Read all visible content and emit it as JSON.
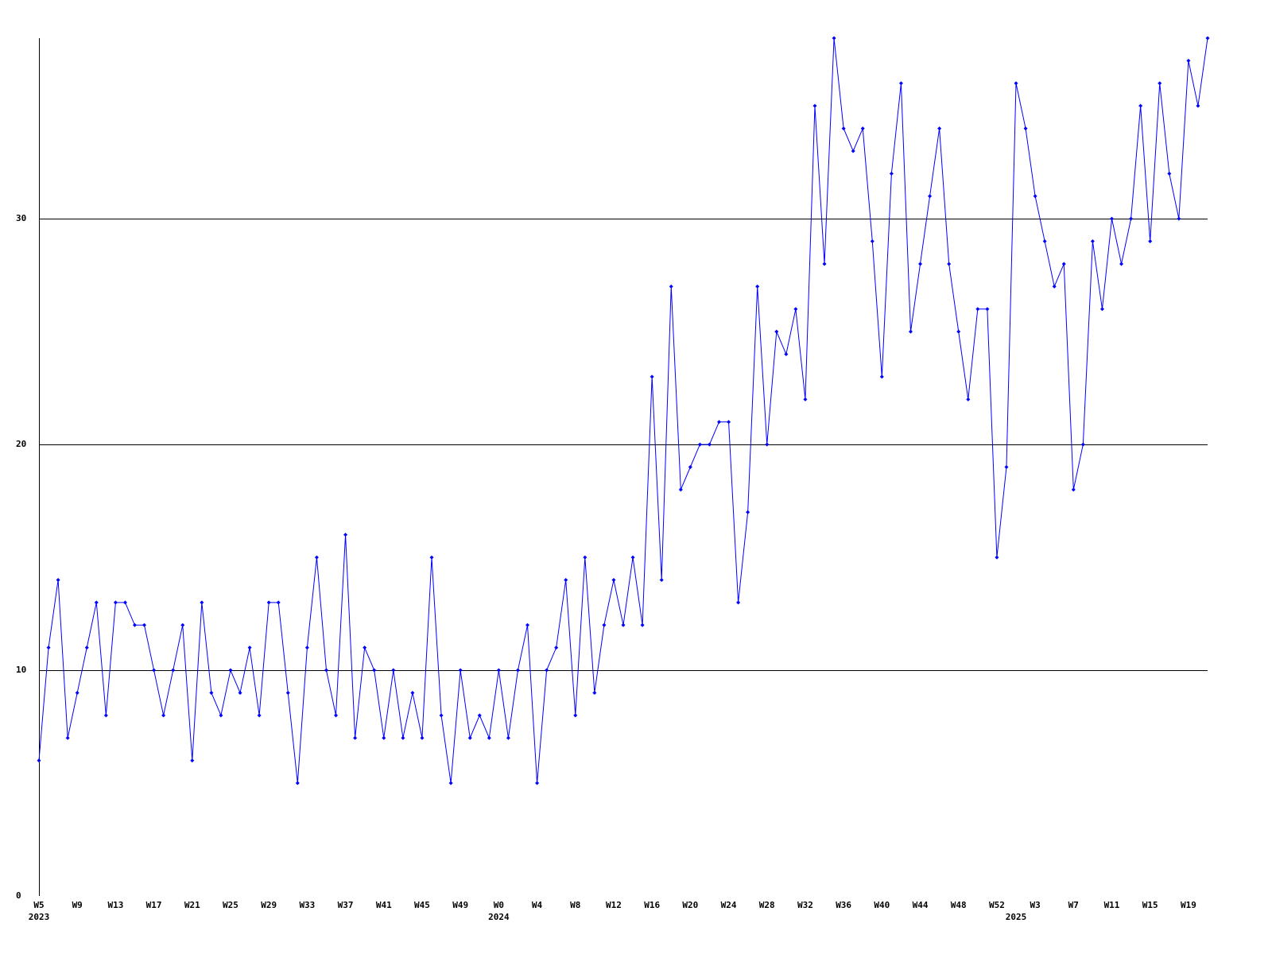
{
  "chart_data": {
    "type": "line",
    "categories": [
      "W5",
      null,
      null,
      null,
      "W9",
      null,
      null,
      null,
      "W13",
      null,
      null,
      null,
      "W17",
      null,
      null,
      null,
      "W21",
      null,
      null,
      null,
      "W25",
      null,
      null,
      null,
      "W29",
      null,
      null,
      null,
      "W33",
      null,
      null,
      null,
      "W37",
      null,
      null,
      null,
      "W41",
      null,
      null,
      null,
      "W45",
      null,
      null,
      null,
      "W49",
      null,
      null,
      null,
      "W0",
      null,
      null,
      null,
      "W4",
      null,
      null,
      null,
      "W8",
      null,
      null,
      null,
      "W12",
      null,
      null,
      null,
      "W16",
      null,
      null,
      null,
      "W20",
      null,
      null,
      null,
      "W24",
      null,
      null,
      null,
      "W28",
      null,
      null,
      null,
      "W32",
      null,
      null,
      null,
      "W36",
      null,
      null,
      null,
      "W40",
      null,
      null,
      null,
      "W44",
      null,
      null,
      null,
      "W48",
      null,
      null,
      null,
      "W52",
      null,
      null,
      null,
      "W3",
      null,
      null,
      null,
      "W7",
      null,
      null,
      null,
      "W11",
      null,
      null,
      null,
      "W15",
      null,
      null,
      null,
      "W19",
      null,
      null
    ],
    "years": [
      "2023",
      null,
      null,
      null,
      null,
      null,
      null,
      null,
      null,
      null,
      null,
      null,
      null,
      null,
      null,
      null,
      null,
      null,
      null,
      null,
      null,
      null,
      null,
      null,
      null,
      null,
      null,
      null,
      null,
      null,
      null,
      null,
      null,
      null,
      null,
      null,
      null,
      null,
      null,
      null,
      null,
      null,
      null,
      null,
      null,
      null,
      null,
      null,
      "2024",
      null,
      null,
      null,
      null,
      null,
      null,
      null,
      null,
      null,
      null,
      null,
      null,
      null,
      null,
      null,
      null,
      null,
      null,
      null,
      null,
      null,
      null,
      null,
      null,
      null,
      null,
      null,
      null,
      null,
      null,
      null,
      null,
      null,
      null,
      null,
      null,
      null,
      null,
      null,
      null,
      null,
      null,
      null,
      null,
      null,
      null,
      null,
      null,
      null,
      null,
      null,
      null,
      null,
      "2025",
      null,
      null,
      null,
      null,
      null,
      null,
      null,
      null,
      null,
      null,
      null,
      null,
      null,
      null,
      null,
      null,
      null,
      null,
      null,
      null
    ],
    "series": [
      {
        "color": "#0000ff",
        "values": [
          6,
          11,
          14,
          7,
          9,
          11,
          13,
          8,
          13,
          13,
          12,
          12,
          10,
          8,
          10,
          12,
          6,
          13,
          9,
          8,
          10,
          9,
          11,
          8,
          13,
          13,
          9,
          5,
          11,
          15,
          10,
          8,
          16,
          7,
          11,
          10,
          7,
          10,
          7,
          9,
          7,
          15,
          8,
          5,
          10,
          7,
          8,
          7,
          10,
          7,
          10,
          12,
          5,
          10,
          11,
          14,
          8,
          15,
          9,
          12,
          14,
          12,
          15,
          12,
          23,
          14,
          27,
          18,
          19,
          20,
          20,
          21,
          21,
          13,
          17,
          27,
          20,
          25,
          24,
          26,
          22,
          35,
          28,
          38,
          34,
          33,
          34,
          29,
          23,
          32,
          36,
          25,
          28,
          31,
          34,
          28,
          25,
          22,
          26,
          26,
          15,
          19,
          36,
          34,
          31,
          29,
          27,
          28,
          18,
          20,
          29,
          26,
          30,
          28,
          30,
          35,
          29,
          36,
          32,
          30,
          37,
          35,
          38
        ]
      }
    ],
    "ylim": [
      0,
      38
    ],
    "yticks": [
      0,
      10,
      20,
      30
    ],
    "grid": true
  }
}
